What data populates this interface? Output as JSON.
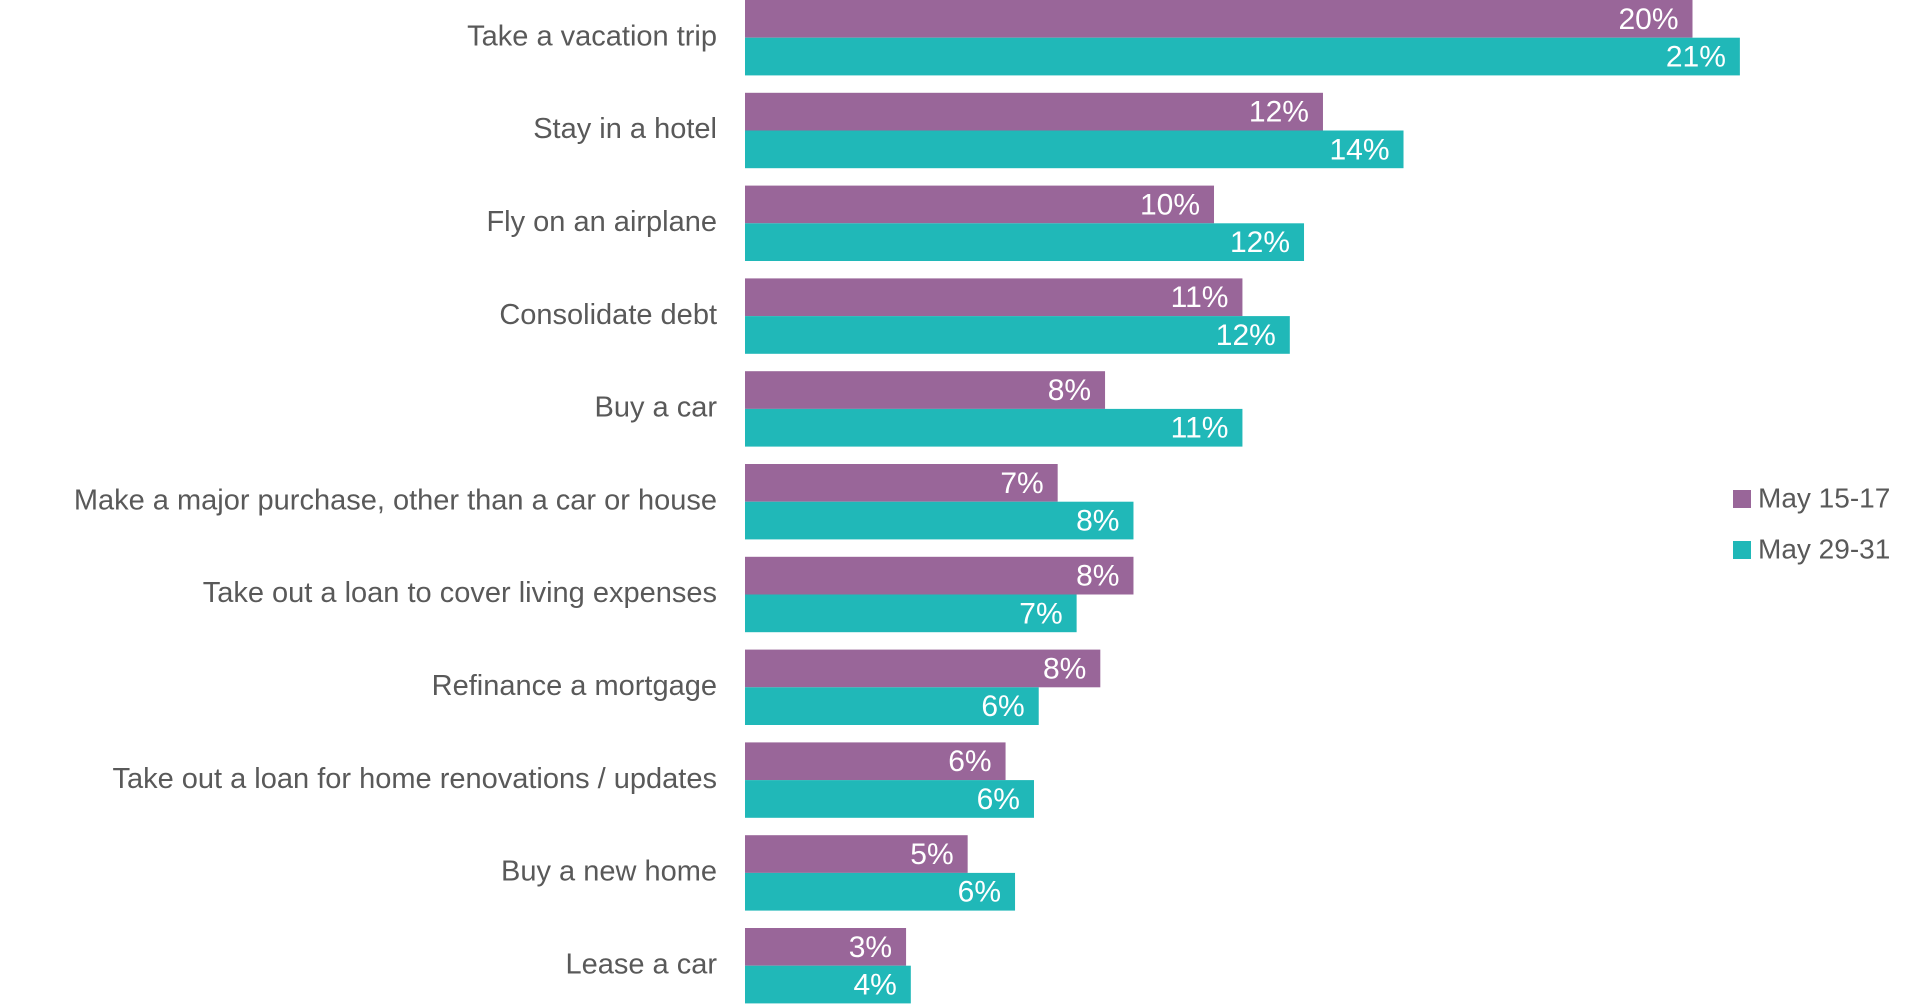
{
  "chart_data": {
    "type": "barh",
    "categories": [
      "Take a vacation trip",
      "Stay in a hotel",
      "Fly on an airplane",
      "Consolidate debt",
      "Buy a car",
      "Make a major purchase, other than a car or house",
      "Take out a loan to cover living expenses",
      "Refinance a mortgage",
      "Take out a loan for home renovations / updates",
      "Buy a new home",
      "Lease a car"
    ],
    "series": [
      {
        "name": "May 15-17",
        "color": "#996699",
        "values": [
          20,
          12.2,
          9.9,
          10.5,
          7.6,
          6.6,
          8.2,
          7.5,
          5.5,
          4.7,
          3.4
        ],
        "value_labels": [
          "20%",
          "12%",
          "10%",
          "11%",
          "8%",
          "7%",
          "8%",
          "8%",
          "6%",
          "5%",
          "3%"
        ]
      },
      {
        "name": "May 29-31",
        "color": "#20b8b8",
        "values": [
          21,
          13.9,
          11.8,
          11.5,
          10.5,
          8.2,
          7,
          6.2,
          6.1,
          5.7,
          3.5
        ],
        "value_labels": [
          "21%",
          "14%",
          "12%",
          "12%",
          "11%",
          "8%",
          "7%",
          "6%",
          "6%",
          "6%",
          "4%"
        ]
      }
    ],
    "xlim": [
      0,
      24
    ],
    "legend": "right"
  }
}
